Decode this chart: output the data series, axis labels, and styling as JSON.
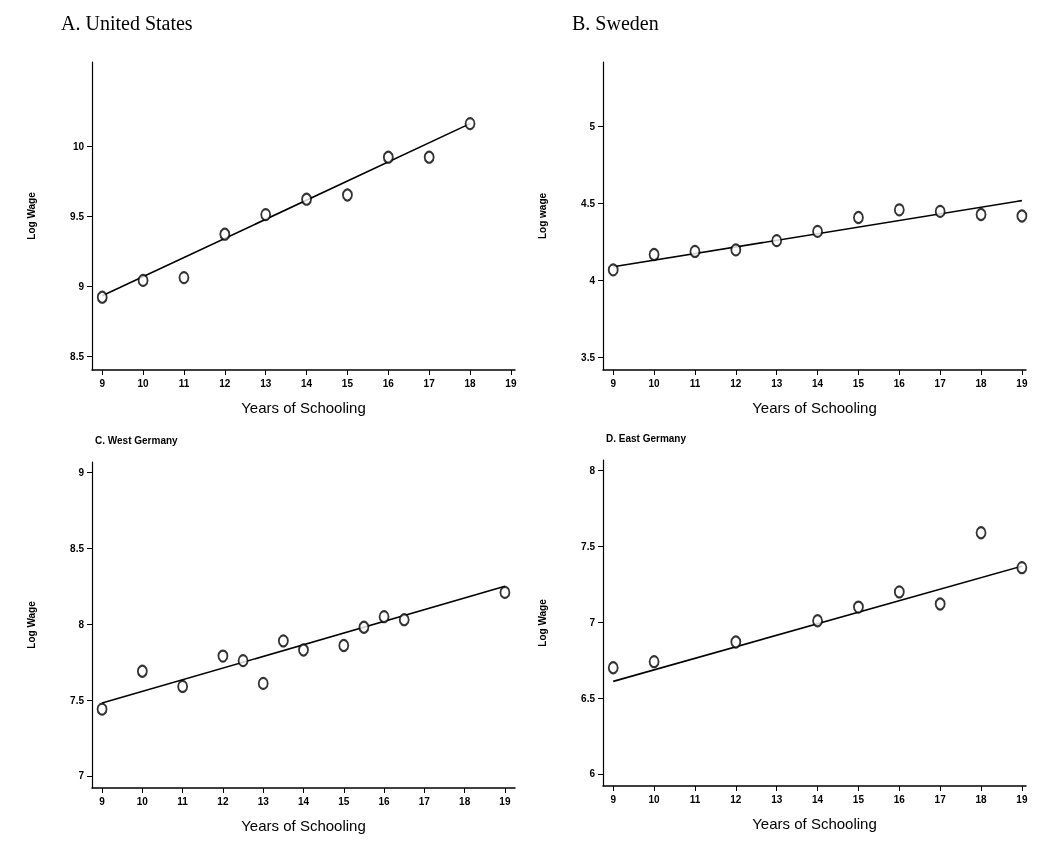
{
  "chart_data": [
    {
      "type": "scatter",
      "title": "A. United States",
      "xlabel": "Years of Schooling",
      "ylabel": "Log Wage",
      "xlim": [
        8.75,
        19.1
      ],
      "xticks": [
        9,
        10,
        11,
        12,
        13,
        14,
        15,
        16,
        17,
        18,
        19
      ],
      "ylim": [
        8.4,
        10.6
      ],
      "yticks": [
        8.5,
        9,
        9.5,
        10
      ],
      "grid": false,
      "series": [
        {
          "x": [
            9,
            10,
            11,
            12,
            13,
            14,
            15,
            16,
            17,
            18
          ],
          "values": [
            8.92,
            9.04,
            9.06,
            9.37,
            9.51,
            9.62,
            9.65,
            9.92,
            9.92,
            10.16
          ],
          "color": "#000000",
          "marker": "circle"
        },
        {
          "type": "line",
          "x": [
            9,
            18
          ],
          "values": [
            8.93,
            10.16
          ],
          "color": "#000000",
          "marker": "none"
        }
      ]
    },
    {
      "type": "scatter",
      "title": "B. Sweden",
      "xlabel": "Years of Schooling",
      "ylabel": "Log wage",
      "xlim": [
        8.75,
        19.1
      ],
      "xticks": [
        9,
        10,
        11,
        12,
        13,
        14,
        15,
        16,
        17,
        18,
        19
      ],
      "ylim": [
        3.42,
        5.42
      ],
      "yticks": [
        3.5,
        4,
        4.5,
        5
      ],
      "grid": false,
      "series": [
        {
          "x": [
            9,
            10,
            11,
            12,
            13,
            14,
            15,
            16,
            17,
            18,
            19
          ],
          "values": [
            4.07,
            4.17,
            4.19,
            4.2,
            4.26,
            4.32,
            4.41,
            4.46,
            4.45,
            4.43,
            4.42
          ],
          "color": "#000000",
          "marker": "circle"
        },
        {
          "type": "line",
          "x": [
            9,
            19
          ],
          "values": [
            4.09,
            4.52
          ],
          "color": "#000000",
          "marker": "none"
        }
      ]
    },
    {
      "type": "scatter",
      "title": "C. West Germany",
      "xlabel": "Years of Schooling",
      "ylabel": "Log Wage",
      "xlim": [
        8.75,
        19.25
      ],
      "xticks": [
        9,
        10,
        11,
        12,
        13,
        14,
        15,
        16,
        17,
        18,
        19
      ],
      "ylim": [
        6.92,
        9.07
      ],
      "yticks": [
        7,
        7.5,
        8,
        8.5,
        9
      ],
      "grid": false,
      "series": [
        {
          "x": [
            9,
            10,
            11,
            12,
            12.5,
            13,
            13.5,
            14,
            15,
            15.5,
            16,
            16.5,
            19
          ],
          "values": [
            7.44,
            7.69,
            7.59,
            7.79,
            7.76,
            7.61,
            7.89,
            7.83,
            7.86,
            7.98,
            8.05,
            8.03,
            8.21
          ],
          "color": "#000000",
          "marker": "circle"
        },
        {
          "type": "line",
          "x": [
            9,
            19
          ],
          "values": [
            7.48,
            8.25
          ],
          "color": "#000000",
          "marker": "none"
        }
      ]
    },
    {
      "type": "scatter",
      "title": "D. East Germany",
      "xlabel": "Years of Schooling",
      "ylabel": "Log Wage",
      "xlim": [
        8.75,
        19.1
      ],
      "xticks": [
        9,
        10,
        11,
        12,
        13,
        14,
        15,
        16,
        17,
        18,
        19
      ],
      "ylim": [
        5.92,
        8.07
      ],
      "yticks": [
        6,
        6.5,
        7,
        7.5,
        8
      ],
      "grid": false,
      "series": [
        {
          "x": [
            9,
            10,
            12,
            14,
            15,
            16,
            17,
            18,
            19
          ],
          "values": [
            6.7,
            6.74,
            6.87,
            7.01,
            7.1,
            7.2,
            7.12,
            7.59,
            7.36
          ],
          "color": "#000000",
          "marker": "circle"
        },
        {
          "type": "line",
          "x": [
            9,
            19
          ],
          "values": [
            6.61,
            7.37
          ],
          "color": "#000000",
          "marker": "none"
        }
      ]
    }
  ]
}
